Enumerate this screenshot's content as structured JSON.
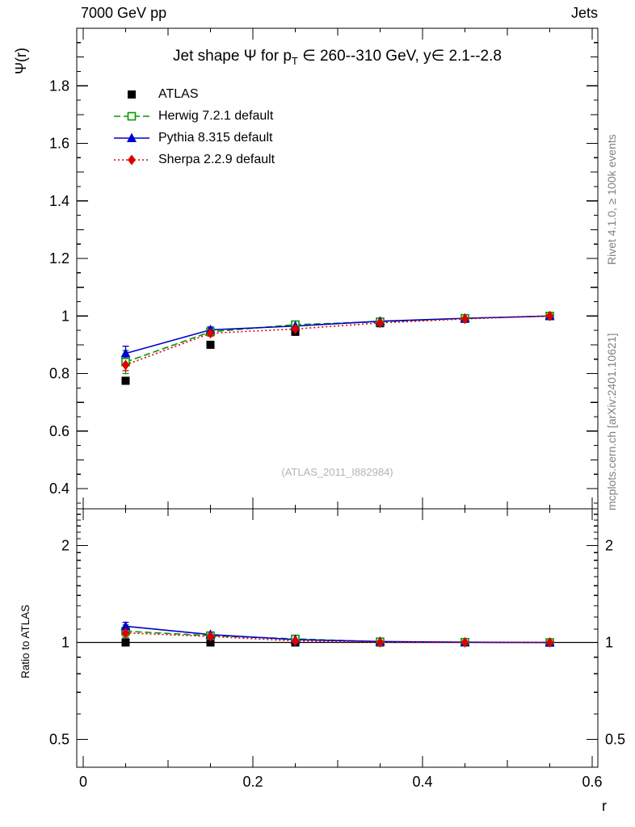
{
  "header": {
    "left": "7000 GeV pp",
    "right": "Jets"
  },
  "title_parts": {
    "pre": "Jet shape Ψ for p",
    "sub": "T",
    "post": " ∈ 260--310 GeV, y∈ 2.1--2.8"
  },
  "watermark": "(ATLAS_2011_I882984)",
  "sidebar_right": {
    "rivet": "Rivet 4.1.0, ≥ 100k events",
    "mcplots": "mcplots.cern.ch [arXiv:2401.10621]"
  },
  "colors": {
    "atlas": "#000000",
    "herwig": "#009900",
    "pythia": "#0000cc",
    "sherpa": "#dd0000"
  },
  "chart_data": [
    {
      "type": "line",
      "panel": "main",
      "title": "Jet shape Ψ for pT ∈ 260--310 GeV, y ∈ 2.1--2.8",
      "xlabel": "r",
      "ylabel": "Ψ(r)",
      "xlim": [
        0,
        0.6
      ],
      "ylim": [
        0.33,
        2.0
      ],
      "yscale": "linear",
      "grid": false,
      "legend_position": "top-left",
      "xticks": [
        0,
        0.2,
        0.4,
        0.6
      ],
      "yticks": [
        0.4,
        0.6,
        0.8,
        1,
        1.2,
        1.4,
        1.6,
        1.8
      ],
      "x": [
        0.05,
        0.15,
        0.25,
        0.35,
        0.45,
        0.55
      ],
      "series": [
        {
          "name": "ATLAS",
          "marker": "square-filled",
          "line": "none",
          "color": "#000000",
          "values": [
            0.775,
            0.9,
            0.945,
            0.975,
            0.99,
            1.0
          ],
          "yerr": [
            0.012,
            0.008,
            0.006,
            0.005,
            0.004,
            0.003
          ]
        },
        {
          "name": "Herwig 7.2.1 default",
          "marker": "square-open",
          "line": "dashed",
          "color": "#009900",
          "values": [
            0.84,
            0.945,
            0.97,
            0.98,
            0.992,
            1.0
          ],
          "yerr": [
            0.04,
            0.012,
            0.008,
            0.006,
            0.004,
            0.002
          ]
        },
        {
          "name": "Pythia 8.315 default",
          "marker": "triangle-filled",
          "line": "solid",
          "color": "#0000cc",
          "values": [
            0.87,
            0.952,
            0.965,
            0.982,
            0.992,
            1.0
          ],
          "yerr": [
            0.025,
            0.01,
            0.007,
            0.005,
            0.003,
            0.002
          ]
        },
        {
          "name": "Sherpa 2.2.9 default",
          "marker": "diamond-filled",
          "line": "dotted",
          "color": "#dd0000",
          "values": [
            0.83,
            0.94,
            0.955,
            0.976,
            0.99,
            1.0
          ],
          "yerr": [
            0.02,
            0.01,
            0.006,
            0.005,
            0.003,
            0.002
          ]
        }
      ]
    },
    {
      "type": "line",
      "panel": "ratio",
      "ylabel": "Ratio to ATLAS",
      "yscale": "log",
      "ylim": [
        0.41,
        2.6
      ],
      "yticks": [
        0.5,
        1,
        2
      ],
      "x": [
        0.05,
        0.15,
        0.25,
        0.35,
        0.45,
        0.55
      ],
      "series": [
        {
          "name": "ATLAS",
          "marker": "square-filled",
          "line": "none",
          "color": "#000000",
          "values": [
            1,
            1,
            1,
            1,
            1,
            1
          ],
          "yerr": [
            0.015,
            0.009,
            0.006,
            0.005,
            0.004,
            0.003
          ]
        },
        {
          "name": "Herwig 7.2.1 default",
          "marker": "square-open",
          "line": "dashed",
          "color": "#009900",
          "values": [
            1.084,
            1.05,
            1.026,
            1.005,
            1.002,
            1.0
          ],
          "yerr": [
            0.05,
            0.013,
            0.008,
            0.006,
            0.004,
            0.002
          ]
        },
        {
          "name": "Pythia 8.315 default",
          "marker": "triangle-filled",
          "line": "solid",
          "color": "#0000cc",
          "values": [
            1.123,
            1.058,
            1.021,
            1.007,
            1.002,
            1.0
          ],
          "yerr": [
            0.032,
            0.011,
            0.007,
            0.005,
            0.003,
            0.002
          ]
        },
        {
          "name": "Sherpa 2.2.9 default",
          "marker": "diamond-filled",
          "line": "dotted",
          "color": "#dd0000",
          "values": [
            1.071,
            1.044,
            1.011,
            1.001,
            1.0,
            1.0
          ],
          "yerr": [
            0.026,
            0.01,
            0.006,
            0.005,
            0.003,
            0.002
          ]
        }
      ]
    }
  ]
}
